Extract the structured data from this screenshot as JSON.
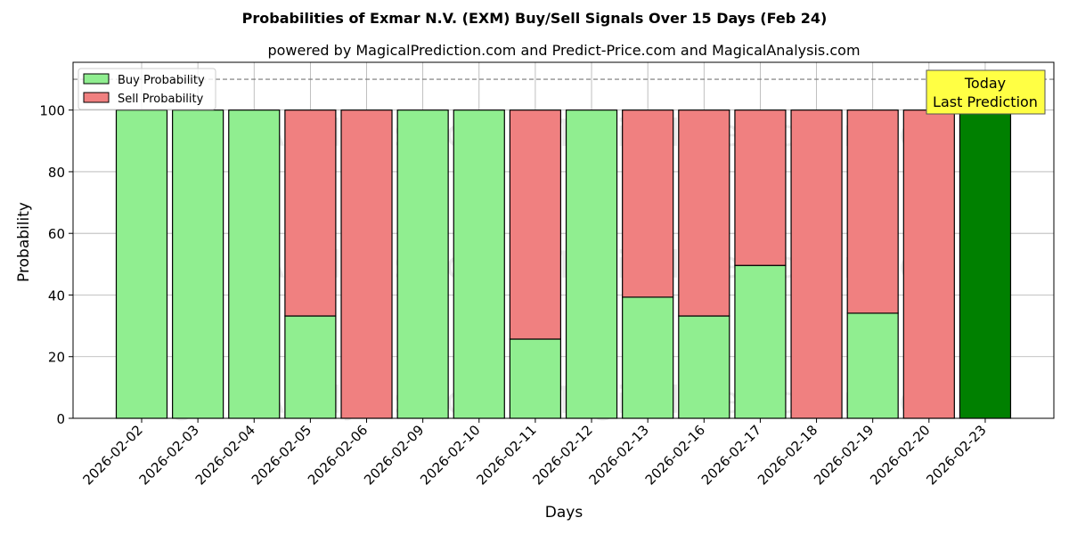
{
  "chart_data": {
    "type": "bar",
    "stacked": true,
    "title": "Probabilities of Exmar N.V. (EXM) Buy/Sell Signals Over 15 Days (Feb 24)",
    "subtitle": "powered by MagicalPrediction.com and Predict-Price.com and MagicalAnalysis.com",
    "xlabel": "Days",
    "ylabel": "Probability",
    "ylim": [
      0,
      115.5
    ],
    "yticks": [
      0,
      20,
      40,
      60,
      80,
      100
    ],
    "grid": true,
    "legend_position": "top-left",
    "categories": [
      "2026-02-02",
      "2026-02-03",
      "2026-02-04",
      "2026-02-05",
      "2026-02-06",
      "2026-02-09",
      "2026-02-10",
      "2026-02-11",
      "2026-02-12",
      "2026-02-13",
      "2026-02-16",
      "2026-02-17",
      "2026-02-18",
      "2026-02-19",
      "2026-02-20",
      "2026-02-23"
    ],
    "series": [
      {
        "name": "Buy Probability",
        "color": "#90ee90",
        "values": [
          100,
          100,
          100,
          33.2,
          0,
          100,
          100,
          25.7,
          100,
          39.3,
          33.2,
          49.6,
          0,
          34.1,
          0,
          100
        ]
      },
      {
        "name": "Sell Probability",
        "color": "#f08080",
        "values": [
          0,
          0,
          0,
          66.8,
          100,
          0,
          0,
          74.3,
          0,
          60.7,
          66.8,
          50.4,
          100,
          65.9,
          100,
          0
        ]
      }
    ],
    "highlight": {
      "index": 15,
      "color": "#008000"
    },
    "reference_line": {
      "y": 110,
      "style": "dashed"
    },
    "annotation": {
      "lines": [
        "Today",
        "Last Prediction"
      ],
      "bg": "#ffff44"
    },
    "watermarks": [
      "MagicalAnalysis.com",
      "MagicalPrediction.com"
    ]
  }
}
